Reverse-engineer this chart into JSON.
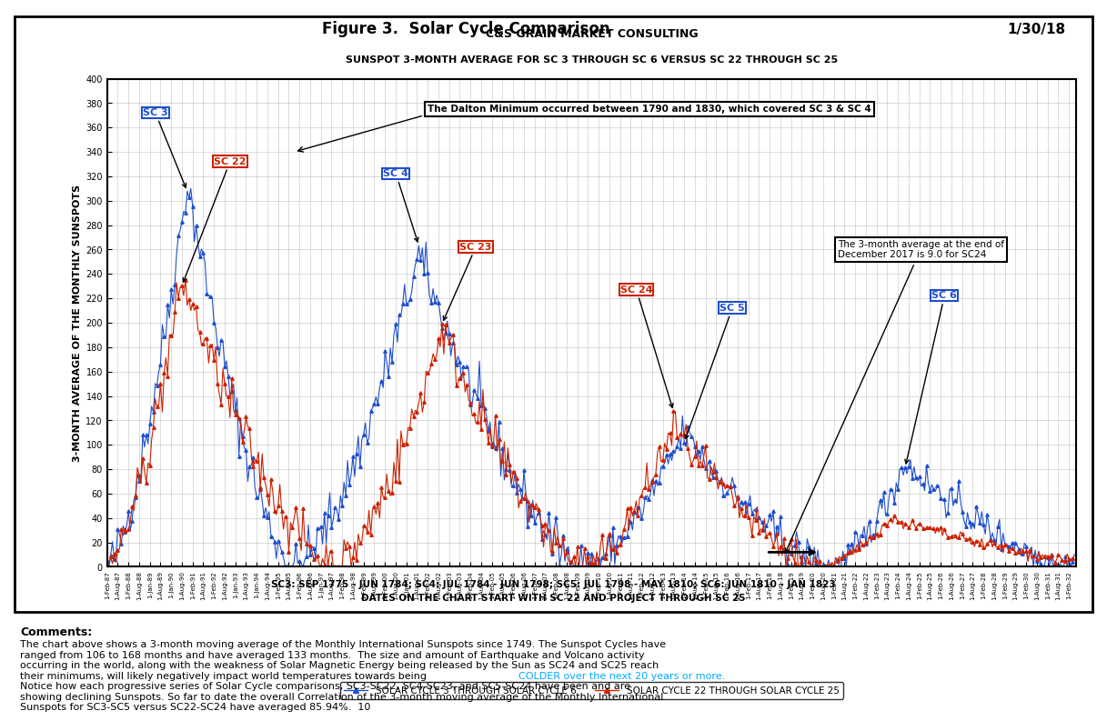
{
  "title_top": "Figure 3.  Solar Cycle Comparison",
  "date_top": "1/30/18",
  "chart_title1": "C&S GRAIN MARKET CONSULTING",
  "chart_title2": "SUNSPOT 3-MONTH AVERAGE FOR SC 3 THROUGH SC 6 VERSUS SC 22 THROUGH SC 25",
  "ylabel": "3-MONTH AVERAGE OF THE MONTHLY SUNSPOTS",
  "ylim": [
    0,
    400
  ],
  "yticks": [
    0,
    20,
    40,
    60,
    80,
    100,
    120,
    140,
    160,
    180,
    200,
    220,
    240,
    260,
    280,
    300,
    320,
    340,
    360,
    380,
    400
  ],
  "xlabel_note1": "SC3: SEP 1775 - JUN 1784; SC4: JUL 1784 - JUN 1798; SC5: JUL 1798 - MAY 1810; SC6: JUN 1810 - JAN 1823",
  "xlabel_note2": "DATES ON THE CHART START WITH SC 22 AND PROJECT THROUGH SC 25",
  "legend1": "SOLAR CYCLE 3 THROUGH SOLAR CYCLE 6",
  "legend2": "SOLAR CYCLE 22 THROUGH SOLAR CYCLE 25",
  "blue_color": "#1F4FCC",
  "red_color": "#CC2200",
  "background_color": "#FFFFFF",
  "grid_color": "#AAAAAA",
  "annotation1_text": "The Dalton Minimum occurred between 1790 and 1830, which covered SC 3 & SC 4",
  "annotation2_text": "The 3-month average at the end of\nDecember 2017 is 9.0 for SC24",
  "comments_title": "Comments:",
  "comments_text": "The chart above shows a 3-month moving average of the Monthly International Sunspots since 1749. The Sunspot Cycles have\nranged from 106 to 168 months and have averaged 133 months.  The size and amount of Earthquake and Volcano activity\noccurring in the world, along with the weakness of Solar Magnetic Energy being released by the Sun as SC24 and SC25 reach\ntheir minimums, will likely negatively impact world temperatures towards being COLDER over the next 20 years or more.\nNotice how each progressive series of Solar Cycle comparisons, SC3-SC22, SC4-SC23, and SC5-SC24 have been and are\nshowing declining Sunspots. So far to date the overall Correlation of the 3-month moving average of the Monthly International\nSunspots for SC3-SC5 versus SC22-SC24 have averaged 85.94%.  10"
}
